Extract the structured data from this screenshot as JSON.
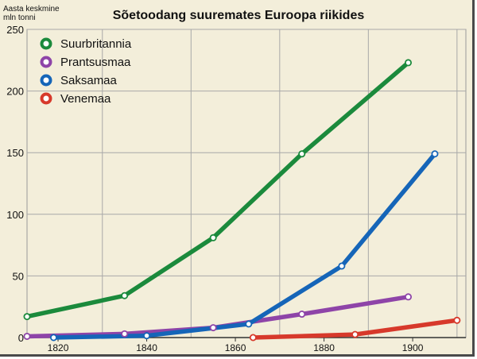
{
  "chart_data": {
    "type": "line",
    "title": "Sõetoodang suuremates Euroopa riikides",
    "ylabel_lines": [
      "Aasta keskmine",
      "mln tonni"
    ],
    "xlabel": "",
    "xlim": [
      1813,
      1912
    ],
    "ylim": [
      0,
      250
    ],
    "x_ticks": [
      1820,
      1840,
      1860,
      1880,
      1900
    ],
    "y_ticks": [
      0,
      50,
      100,
      150,
      200,
      250
    ],
    "grid": true,
    "legend_position": "top-left",
    "series": [
      {
        "name": "Suurbritannia",
        "color": "#1b8a3c",
        "points": [
          [
            1813,
            17
          ],
          [
            1835,
            34
          ],
          [
            1855,
            81
          ],
          [
            1875,
            149
          ],
          [
            1899,
            223
          ]
        ]
      },
      {
        "name": "Prantsusmaa",
        "color": "#8e44a8",
        "points": [
          [
            1813,
            1
          ],
          [
            1835,
            3
          ],
          [
            1855,
            8
          ],
          [
            1875,
            19
          ],
          [
            1899,
            33
          ]
        ]
      },
      {
        "name": "Saksamaa",
        "color": "#1565b8",
        "points": [
          [
            1819,
            0
          ],
          [
            1840,
            1.5
          ],
          [
            1863,
            11
          ],
          [
            1884,
            58
          ],
          [
            1905,
            149
          ]
        ]
      },
      {
        "name": "Venemaa",
        "color": "#d7392b",
        "points": [
          [
            1864,
            0
          ],
          [
            1887,
            2.5
          ],
          [
            1910,
            14
          ]
        ]
      }
    ]
  }
}
